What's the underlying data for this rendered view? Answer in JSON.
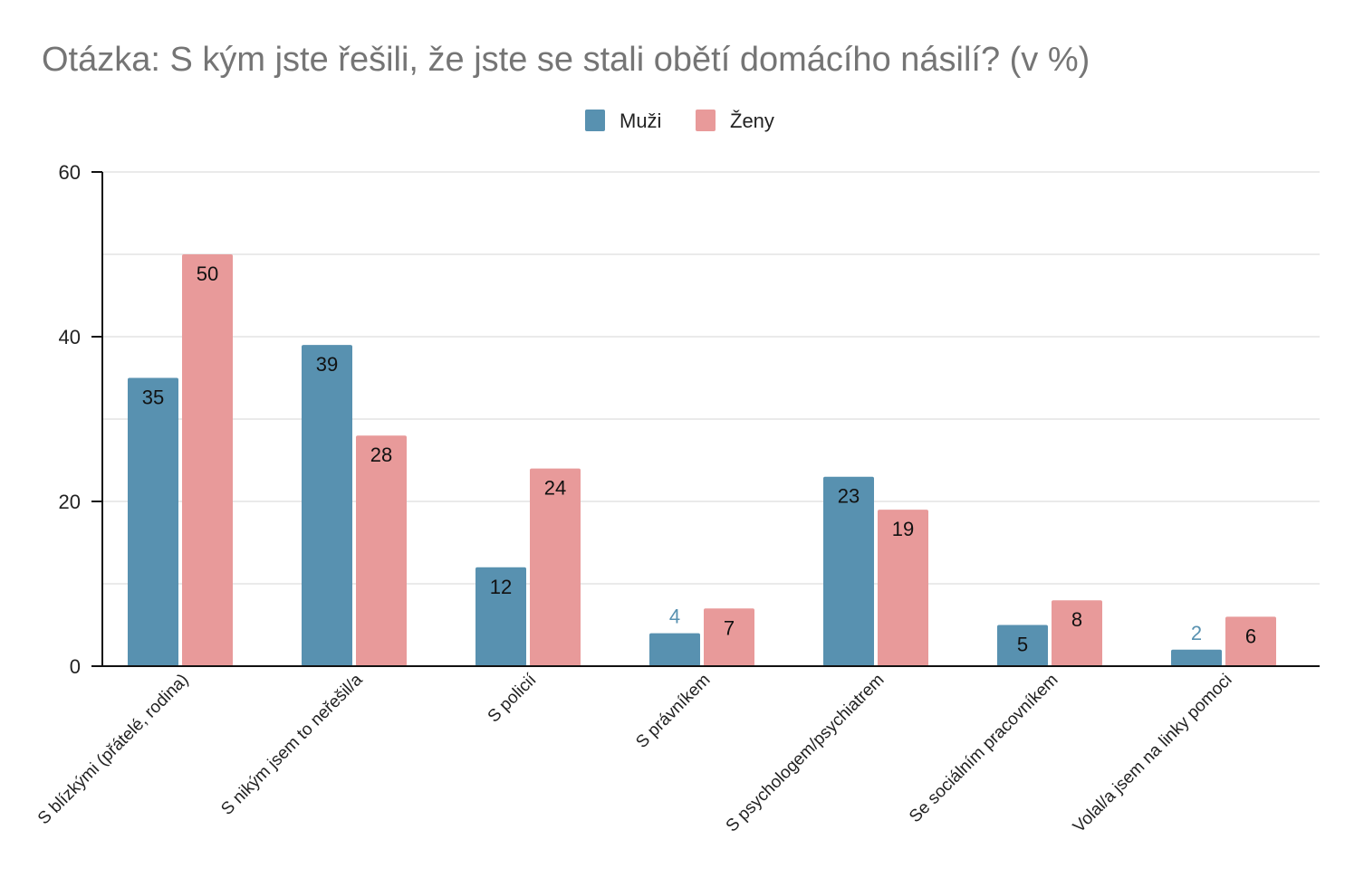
{
  "chart_data": {
    "type": "bar",
    "title": "Otázka: S kým jste řešili, že jste se stali obětí domácího násilí? (v %)",
    "xlabel": "",
    "ylabel": "",
    "ylim": [
      0,
      60
    ],
    "yticks": [
      0,
      20,
      40,
      60
    ],
    "grid": true,
    "legend_position": "top-center",
    "categories": [
      "S blízkými (přátelé, rodina)",
      "S nikým jsem to neřešil/a",
      "S policií",
      "S právníkem",
      "S psychologem/psychiatrem",
      "Se sociálním pracovníkem",
      "Volal/a jsem na linky pomoci"
    ],
    "series": [
      {
        "name": "Muži",
        "color": "#5891b0",
        "values": [
          35,
          39,
          12,
          4,
          23,
          5,
          2
        ]
      },
      {
        "name": "Ženy",
        "color": "#e89a9a",
        "values": [
          50,
          28,
          24,
          7,
          19,
          8,
          6
        ]
      }
    ]
  }
}
